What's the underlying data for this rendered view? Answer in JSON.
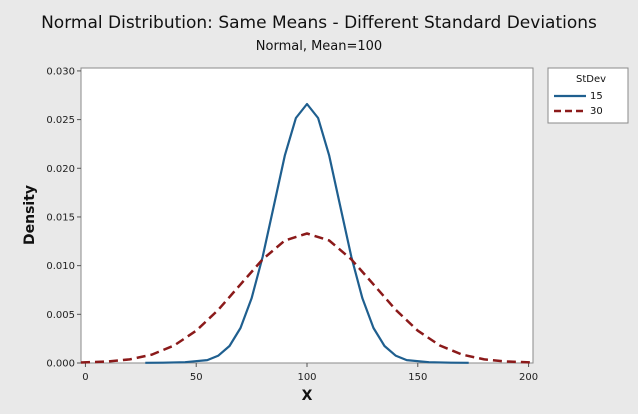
{
  "chart_data": {
    "type": "line",
    "title": "Normal Distribution: Same Means - Different Standard Deviations",
    "subtitle": "Normal, Mean=100",
    "xlabel": "X",
    "ylabel": "Density",
    "xlim": [
      -2,
      202
    ],
    "ylim": [
      0,
      0.0303
    ],
    "x_ticks": [
      "0",
      "50",
      "100",
      "150",
      "200"
    ],
    "y_ticks": [
      "0.000",
      "0.005",
      "0.010",
      "0.015",
      "0.020",
      "0.025",
      "0.030"
    ],
    "grid": false,
    "legend": {
      "title": "StDev",
      "position": "top-right, outside plot"
    },
    "series": [
      {
        "name": "15",
        "color": "#1f5f8f",
        "style": "solid",
        "x": [
          27,
          35,
          45,
          55,
          60,
          65,
          70,
          75,
          80,
          85,
          90,
          95,
          100,
          105,
          110,
          115,
          120,
          125,
          130,
          135,
          140,
          145,
          155,
          165,
          173
        ],
        "y": [
          2e-05,
          3e-05,
          8e-05,
          0.0003,
          0.00076,
          0.00175,
          0.0036,
          0.00665,
          0.01093,
          0.01613,
          0.0213,
          0.02516,
          0.0266,
          0.02516,
          0.0213,
          0.01613,
          0.01093,
          0.00665,
          0.0036,
          0.00175,
          0.00076,
          0.0003,
          8e-05,
          3e-05,
          2e-05
        ]
      },
      {
        "name": "30",
        "color": "#8b1a1a",
        "style": "dashed",
        "x": [
          -2,
          10,
          20,
          30,
          40,
          50,
          60,
          70,
          80,
          90,
          100,
          110,
          120,
          130,
          140,
          150,
          160,
          170,
          180,
          190,
          202
        ],
        "y": [
          5e-05,
          0.00015,
          0.00037,
          0.00086,
          0.0018,
          0.00332,
          0.00547,
          0.00807,
          0.01065,
          0.01258,
          0.0133,
          0.01258,
          0.01065,
          0.00807,
          0.00547,
          0.00332,
          0.0018,
          0.00086,
          0.00037,
          0.00015,
          5e-05
        ]
      }
    ]
  }
}
